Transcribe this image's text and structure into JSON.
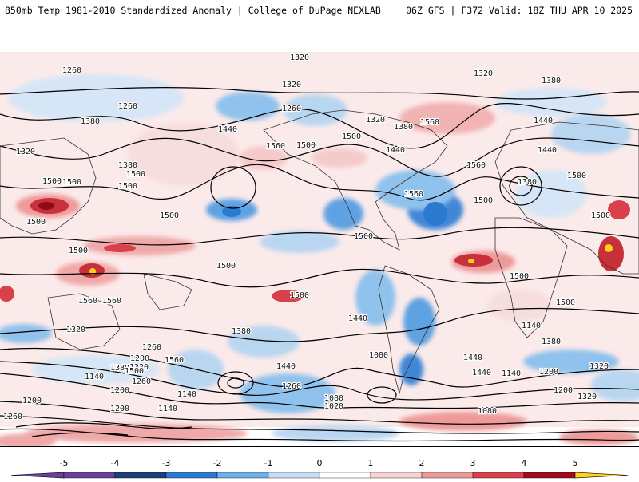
{
  "header": {
    "left": "850mb Temp 1981-2010 Standardized Anomaly | College of DuPage NEXLAB",
    "right": "06Z GFS | F372 Valid: 18Z THU APR 10 2025"
  },
  "colors": {
    "neg5": "#6a3fa0",
    "neg4": "#1f3f7a",
    "neg3": "#2c7ad0",
    "neg2": "#6fb0e8",
    "neg1": "#c9def4",
    "pos1": "#f6d2d2",
    "pos2": "#ee9a9a",
    "pos3": "#d9414a",
    "pos4": "#9e0e1c",
    "pos5": "#ffd21a"
  },
  "colorbar": {
    "ticks": [
      "-5",
      "-4",
      "-3",
      "-2",
      "-1",
      "0",
      "1",
      "2",
      "3",
      "4",
      "5"
    ]
  },
  "contour_labels": [
    "1320",
    "1260",
    "1320",
    "1320",
    "1380",
    "1260",
    "1380",
    "1320",
    "1560",
    "1260",
    "1380",
    "1440",
    "1320",
    "1440",
    "1500",
    "1560",
    "1380",
    "1440",
    "1500",
    "1440",
    "1500",
    "1500",
    "1380",
    "1500",
    "1500",
    "1500",
    "1560",
    "1500",
    "1560",
    "1500",
    "1500",
    "1500",
    "1500",
    "1500",
    "1500",
    "1500",
    "1500",
    "1560",
    "1560",
    "1500",
    "1320",
    "1380",
    "1440",
    "1260",
    "1200",
    "1560",
    "1380",
    "1320",
    "1500",
    "1440",
    "1140",
    "1380",
    "1440",
    "1080",
    "1140",
    "1260",
    "1320",
    "1200",
    "1440",
    "1140",
    "1260",
    "1200",
    "1140",
    "1080",
    "1020",
    "1200",
    "1260",
    "1200",
    "1140",
    "1080",
    "1320",
    "1200"
  ],
  "label_positions": [
    [
      375,
      70
    ],
    [
      90,
      86
    ],
    [
      605,
      90
    ],
    [
      365,
      104
    ],
    [
      690,
      99
    ],
    [
      365,
      134
    ],
    [
      113,
      150
    ],
    [
      470,
      148
    ],
    [
      538,
      151
    ],
    [
      160,
      131
    ],
    [
      505,
      157
    ],
    [
      680,
      149
    ],
    [
      32,
      188
    ],
    [
      285,
      160
    ],
    [
      440,
      169
    ],
    [
      345,
      181
    ],
    [
      160,
      205
    ],
    [
      685,
      186
    ],
    [
      383,
      180
    ],
    [
      495,
      186
    ],
    [
      170,
      216
    ],
    [
      722,
      218
    ],
    [
      660,
      226
    ],
    [
      65,
      225
    ],
    [
      90,
      226
    ],
    [
      160,
      231
    ],
    [
      596,
      205
    ],
    [
      605,
      249
    ],
    [
      518,
      241
    ],
    [
      45,
      276
    ],
    [
      212,
      268
    ],
    [
      752,
      268
    ],
    [
      455,
      294
    ],
    [
      98,
      312
    ],
    [
      283,
      331
    ],
    [
      650,
      344
    ],
    [
      708,
      377
    ],
    [
      110,
      375
    ],
    [
      140,
      375
    ],
    [
      375,
      368
    ],
    [
      95,
      411
    ],
    [
      302,
      413
    ],
    [
      448,
      397
    ],
    [
      190,
      433
    ],
    [
      175,
      447
    ],
    [
      218,
      449
    ],
    [
      150,
      459
    ],
    [
      174,
      458
    ],
    [
      168,
      463
    ],
    [
      358,
      457
    ],
    [
      665,
      406
    ],
    [
      690,
      426
    ],
    [
      592,
      446
    ],
    [
      474,
      443
    ],
    [
      118,
      470
    ],
    [
      177,
      476
    ],
    [
      750,
      457
    ],
    [
      687,
      464
    ],
    [
      603,
      465
    ],
    [
      640,
      466
    ],
    [
      365,
      482
    ],
    [
      150,
      487
    ],
    [
      234,
      492
    ],
    [
      418,
      497
    ],
    [
      418,
      507
    ],
    [
      40,
      500
    ],
    [
      16,
      520
    ],
    [
      150,
      510
    ],
    [
      210,
      510
    ],
    [
      610,
      513
    ],
    [
      735,
      495
    ],
    [
      705,
      487
    ]
  ]
}
